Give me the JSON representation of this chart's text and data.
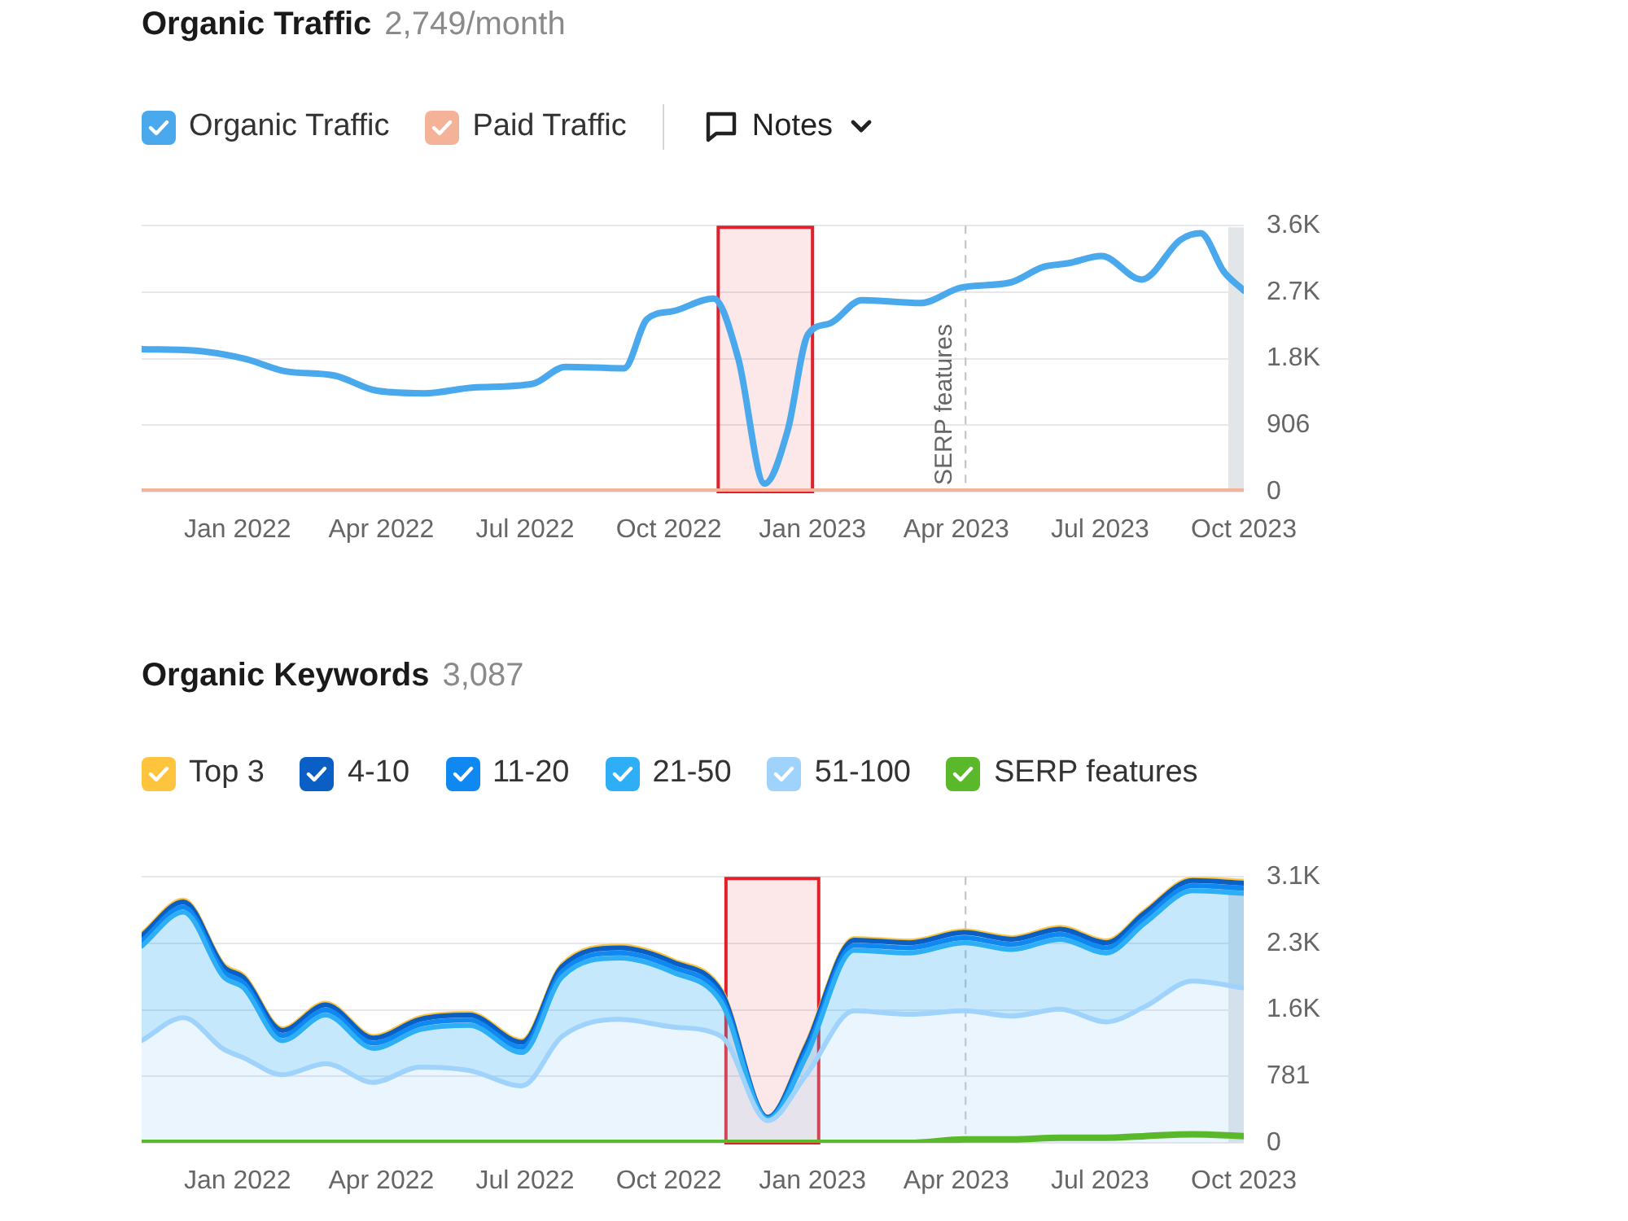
{
  "chart_data": [
    {
      "type": "line",
      "title": "Organic Traffic",
      "subtitle": "2,749/month",
      "legend": "top left",
      "grid": "y",
      "marker": "none",
      "annotations": [
        "Notes"
      ],
      "xlim": [
        "2021-11-01",
        "2023-10-01"
      ],
      "xticks": [
        {
          "value": "2022-01-01",
          "label": "Jan 2022"
        },
        {
          "value": "2022-04-01",
          "label": "Apr 2022"
        },
        {
          "value": "2022-07-01",
          "label": "Jul 2022"
        },
        {
          "value": "2022-10-01",
          "label": "Oct 2022"
        },
        {
          "value": "2023-01-01",
          "label": "Jan 2023"
        },
        {
          "value": "2023-04-01",
          "label": "Apr 2023"
        },
        {
          "value": "2023-07-01",
          "label": "Jul 2023"
        },
        {
          "value": "2023-10-01",
          "label": "Oct 2023"
        }
      ],
      "ylim": [
        0,
        3624
      ],
      "yticks": [
        0,
        906,
        {
          "value": 1812,
          "label": "1.8K"
        },
        {
          "value": 2718,
          "label": "2.7K"
        },
        {
          "value": 3624,
          "label": "3.6K"
        }
      ],
      "ref_lines": [
        {
          "axis": "x",
          "value": "2023-04-07",
          "label": "SERP features",
          "line_style": "dashed",
          "color": "#c8c8c8"
        }
      ],
      "bands": [
        {
          "axis": "x",
          "from": "2022-11-02",
          "to": "2023-01-01",
          "color": "#e0202a"
        },
        {
          "axis": "x",
          "from": "2023-09-22",
          "to": "2023-10-01",
          "color": "#e3e6e8"
        }
      ],
      "series": [
        {
          "name": "Organic Traffic",
          "color": "#4aa8ec",
          "x": [
            "2021-11-01",
            "2021-12-05",
            "2022-01-06",
            "2022-02-01",
            "2022-03-02",
            "2022-03-28",
            "2022-04-29",
            "2022-05-30",
            "2022-07-06",
            "2022-07-27",
            "2022-09-03",
            "2022-09-18",
            "2022-10-04",
            "2022-10-30",
            "2022-11-15",
            "2022-12-01",
            "2022-12-16",
            "2022-12-29",
            "2023-01-12",
            "2023-02-02",
            "2023-03-09",
            "2023-04-04",
            "2023-05-05",
            "2023-05-26",
            "2023-06-11",
            "2023-07-02",
            "2023-07-28",
            "2023-08-22",
            "2023-09-04",
            "2023-09-19",
            "2023-10-01"
          ],
          "values": [
            1940,
            1920,
            1810,
            1640,
            1580,
            1380,
            1340,
            1420,
            1470,
            1700,
            1680,
            2350,
            2460,
            2630,
            1810,
            110,
            840,
            2140,
            2290,
            2610,
            2570,
            2780,
            2850,
            3060,
            3110,
            3210,
            2890,
            3430,
            3520,
            3000,
            2740
          ]
        },
        {
          "name": "Paid Traffic",
          "color": "#f4b399",
          "x": [
            "2021-11-01",
            "2023-10-01"
          ],
          "values": [
            0,
            0
          ]
        }
      ]
    },
    {
      "type": "area",
      "title": "Organic Keywords",
      "subtitle": "3,087",
      "legend": "top left",
      "grid": "y",
      "marker": "none",
      "stacked": true,
      "xlim": [
        "2021-11-01",
        "2023-10-01"
      ],
      "xticks": [
        {
          "value": "2022-01-01",
          "label": "Jan 2022"
        },
        {
          "value": "2022-04-01",
          "label": "Apr 2022"
        },
        {
          "value": "2022-07-01",
          "label": "Jul 2022"
        },
        {
          "value": "2022-10-01",
          "label": "Oct 2022"
        },
        {
          "value": "2023-01-01",
          "label": "Jan 2023"
        },
        {
          "value": "2023-04-01",
          "label": "Apr 2023"
        },
        {
          "value": "2023-07-01",
          "label": "Jul 2023"
        },
        {
          "value": "2023-10-01",
          "label": "Oct 2023"
        }
      ],
      "ylim": [
        0,
        3124
      ],
      "yticks": [
        0,
        781,
        {
          "value": 1562,
          "label": "1.6K"
        },
        {
          "value": 2343,
          "label": "2.3K"
        },
        {
          "value": 3124,
          "label": "3.1K"
        }
      ],
      "ref_lines": [
        {
          "axis": "x",
          "value": "2023-04-07",
          "line_style": "dashed",
          "color": "#c8c8c8"
        }
      ],
      "bands": [
        {
          "axis": "x",
          "from": "2022-11-07",
          "to": "2023-01-05",
          "color": "#e0202a"
        },
        {
          "axis": "x",
          "from": "2023-09-22",
          "to": "2023-10-01",
          "color": "#e3e6e8"
        }
      ],
      "x": [
        "2021-11-01",
        "2021-11-28",
        "2021-12-23",
        "2022-01-05",
        "2022-01-30",
        "2022-02-27",
        "2022-03-27",
        "2022-04-26",
        "2022-05-27",
        "2022-06-30",
        "2022-07-25",
        "2022-08-31",
        "2022-10-04",
        "2022-11-04",
        "2022-12-03",
        "2022-12-28",
        "2023-01-28",
        "2023-03-02",
        "2023-04-06",
        "2023-05-06",
        "2023-06-06",
        "2023-07-05",
        "2023-07-30",
        "2023-08-30",
        "2023-10-01"
      ],
      "series": [
        {
          "name": "51-100",
          "color": "#9fd3fb",
          "values": [
            1200,
            1470,
            1100,
            1000,
            800,
            930,
            710,
            890,
            850,
            670,
            1250,
            1450,
            1360,
            1250,
            260,
            800,
            1550,
            1510,
            1550,
            1490,
            1570,
            1420,
            1600,
            1900,
            1820
          ]
        },
        {
          "name": "21-50",
          "color": "#2eaef5",
          "values": [
            1110,
            1240,
            850,
            820,
            400,
            570,
            400,
            440,
            530,
            390,
            700,
            720,
            640,
            400,
            20,
            220,
            710,
            720,
            800,
            780,
            820,
            810,
            980,
            1060,
            1110
          ]
        },
        {
          "name": "11-20",
          "color": "#1088f2",
          "values": [
            60,
            60,
            60,
            60,
            60,
            60,
            60,
            60,
            60,
            60,
            60,
            60,
            60,
            60,
            10,
            60,
            60,
            60,
            60,
            60,
            60,
            60,
            60,
            60,
            60
          ]
        },
        {
          "name": "4-10",
          "color": "#0a5fc4",
          "values": [
            60,
            60,
            60,
            60,
            60,
            60,
            60,
            60,
            60,
            60,
            60,
            60,
            60,
            60,
            10,
            60,
            60,
            60,
            60,
            60,
            60,
            60,
            60,
            60,
            60
          ]
        },
        {
          "name": "Top 3",
          "color": "#fec43d",
          "values": [
            20,
            20,
            20,
            20,
            20,
            20,
            20,
            20,
            20,
            20,
            20,
            20,
            20,
            20,
            0,
            20,
            20,
            20,
            20,
            20,
            20,
            20,
            20,
            20,
            20
          ]
        },
        {
          "name": "SERP features",
          "type": "line",
          "color": "#5ab92a",
          "values": [
            0,
            0,
            0,
            0,
            0,
            0,
            0,
            0,
            0,
            0,
            0,
            0,
            0,
            0,
            0,
            0,
            0,
            0,
            40,
            40,
            60,
            60,
            80,
            100,
            80
          ]
        }
      ]
    }
  ]
}
